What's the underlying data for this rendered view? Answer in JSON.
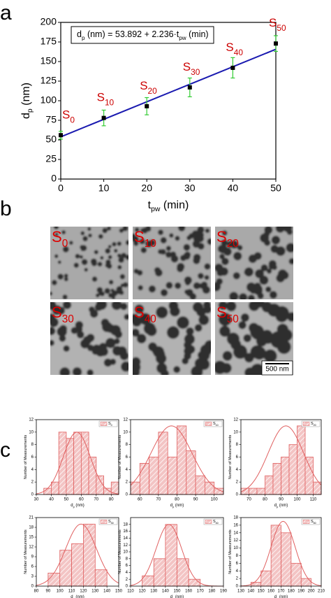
{
  "panel_labels": [
    "a",
    "b",
    "c"
  ],
  "chart_data": [
    {
      "type": "scatter",
      "x": [
        0,
        10,
        20,
        30,
        40,
        50
      ],
      "values": [
        56,
        78,
        93,
        117,
        142,
        173
      ],
      "errors": [
        5,
        10,
        11,
        12,
        13,
        10
      ],
      "point_labels": [
        [
          {
            "text": "S"
          },
          {
            "text": "0",
            "sub": true
          }
        ],
        [
          {
            "text": "S"
          },
          {
            "text": "10",
            "sub": true
          }
        ],
        [
          {
            "text": "S"
          },
          {
            "text": "20",
            "sub": true
          }
        ],
        [
          {
            "text": "S"
          },
          {
            "text": "30",
            "sub": true
          }
        ],
        [
          {
            "text": "S"
          },
          {
            "text": "40",
            "sub": true
          }
        ],
        [
          {
            "text": "S"
          },
          {
            "text": "50",
            "sub": true
          }
        ]
      ],
      "xlabel": [
        {
          "text": "t"
        },
        {
          "text": "pw",
          "sub": true
        },
        {
          "text": " (min)"
        }
      ],
      "ylabel": [
        {
          "text": "d"
        },
        {
          "text": "p",
          "sub": true
        },
        {
          "text": " (nm)"
        }
      ],
      "annotation": [
        {
          "text": "d"
        },
        {
          "text": "p",
          "sub": true
        },
        {
          "text": " (nm) = 53.892 + 2.236·t"
        },
        {
          "text": "pw",
          "sub": true
        },
        {
          "text": " (min)"
        }
      ],
      "fit": {
        "intercept": 53.892,
        "slope": 2.236,
        "color": "#1a1ab0"
      },
      "xlim": [
        0,
        50
      ],
      "xticks": [
        0,
        10,
        20,
        30,
        40,
        50
      ],
      "ylim": [
        0,
        200
      ],
      "yticks": [
        0,
        25,
        50,
        75,
        100,
        125,
        150,
        175,
        200
      ],
      "marker_color": "#000000",
      "error_color": "#33cc33",
      "label_color": "#cc0000"
    },
    {
      "type": "histogram",
      "legend": [
        {
          "text": "S"
        },
        {
          "text": "0",
          "sub": true
        }
      ],
      "bins": [
        35,
        40,
        45,
        50,
        55,
        60,
        65,
        70,
        75,
        80,
        85
      ],
      "values": [
        1,
        2,
        10,
        9,
        10,
        10,
        6,
        3,
        1,
        2
      ],
      "fit": {
        "mean": 57,
        "sd": 9,
        "amplitude": 10
      },
      "xlim": [
        30,
        85
      ],
      "xticks": [
        30,
        40,
        50,
        60,
        70,
        80
      ],
      "ylim": [
        0,
        12
      ],
      "yticks": [
        0,
        2,
        4,
        6,
        8,
        10,
        12
      ],
      "xlabel": [
        {
          "text": "d"
        },
        {
          "text": "p",
          "sub": true
        },
        {
          "text": " (nm)"
        }
      ],
      "ylabel": [
        {
          "text": "Number of Measurements"
        }
      ],
      "color": "#e06060"
    },
    {
      "type": "histogram",
      "legend": [
        {
          "text": "S"
        },
        {
          "text": "10",
          "sub": true
        }
      ],
      "bins": [
        55,
        60,
        65,
        70,
        75,
        80,
        85,
        90,
        95,
        100,
        105
      ],
      "values": [
        2,
        5,
        6,
        10,
        6,
        11,
        7,
        3,
        2,
        1
      ],
      "fit": {
        "mean": 77,
        "sd": 11,
        "amplitude": 11
      },
      "xlim": [
        55,
        105
      ],
      "xticks": [
        60,
        70,
        80,
        90,
        100
      ],
      "ylim": [
        0,
        12
      ],
      "yticks": [
        0,
        2,
        4,
        6,
        8,
        10,
        12
      ],
      "xlabel": [
        {
          "text": "d"
        },
        {
          "text": "p",
          "sub": true
        },
        {
          "text": " (nm)"
        }
      ],
      "ylabel": [
        {
          "text": "Number of Measurements"
        }
      ],
      "color": "#e06060"
    },
    {
      "type": "histogram",
      "legend": [
        {
          "text": "S"
        },
        {
          "text": "20",
          "sub": true
        }
      ],
      "bins": [
        65,
        70,
        75,
        80,
        85,
        90,
        95,
        100,
        105,
        110,
        115
      ],
      "values": [
        1,
        1,
        1,
        3,
        5,
        6,
        8,
        11,
        6,
        2
      ],
      "fit": {
        "mean": 93,
        "sd": 11,
        "amplitude": 11
      },
      "xlim": [
        65,
        115
      ],
      "xticks": [
        70,
        80,
        90,
        100,
        110
      ],
      "ylim": [
        0,
        12
      ],
      "yticks": [
        0,
        2,
        4,
        6,
        8,
        10,
        12
      ],
      "xlabel": [
        {
          "text": "d"
        },
        {
          "text": "p",
          "sub": true
        },
        {
          "text": " (nm)"
        }
      ],
      "ylabel": [
        {
          "text": "Number of Measurements"
        }
      ],
      "color": "#e06060"
    },
    {
      "type": "histogram",
      "legend": [
        {
          "text": "S"
        },
        {
          "text": "30",
          "sub": true
        }
      ],
      "bins": [
        90,
        100,
        110,
        120,
        130,
        140
      ],
      "values": [
        4,
        11,
        13,
        19,
        5
      ],
      "fit": {
        "mean": 118,
        "sd": 13,
        "amplitude": 19
      },
      "xlim": [
        80,
        150
      ],
      "xticks": [
        80,
        90,
        100,
        110,
        120,
        130,
        140,
        150
      ],
      "ylim": [
        0,
        21
      ],
      "yticks": [
        0,
        3,
        6,
        9,
        12,
        15,
        18,
        21
      ],
      "xlabel": [
        {
          "text": "d"
        },
        {
          "text": "p",
          "sub": true
        },
        {
          "text": " (nm)"
        }
      ],
      "ylabel": [
        {
          "text": "Number of Measurements"
        }
      ],
      "color": "#e06060"
    },
    {
      "type": "histogram",
      "legend": [
        {
          "text": "S"
        },
        {
          "text": "40",
          "sub": true
        }
      ],
      "bins": [
        120,
        130,
        140,
        150,
        160,
        170
      ],
      "values": [
        3,
        8,
        18,
        8,
        2
      ],
      "fit": {
        "mean": 143,
        "sd": 11,
        "amplitude": 18
      },
      "xlim": [
        110,
        190
      ],
      "xticks": [
        110,
        120,
        130,
        140,
        150,
        160,
        170,
        180,
        190
      ],
      "ylim": [
        0,
        20
      ],
      "yticks": [
        0,
        2,
        4,
        6,
        8,
        10,
        12,
        14,
        16,
        18
      ],
      "xlabel": [
        {
          "text": "d"
        },
        {
          "text": "p",
          "sub": true
        },
        {
          "text": " (nm)"
        }
      ],
      "ylabel": [
        {
          "text": "Number of Measurements"
        }
      ],
      "color": "#e06060"
    },
    {
      "type": "histogram",
      "legend": [
        {
          "text": "S"
        },
        {
          "text": "50",
          "sub": true
        }
      ],
      "bins": [
        140,
        150,
        160,
        170,
        180,
        190,
        200
      ],
      "values": [
        1,
        4,
        16,
        14,
        6,
        2
      ],
      "fit": {
        "mean": 172,
        "sd": 12,
        "amplitude": 17
      },
      "xlim": [
        130,
        210
      ],
      "xticks": [
        130,
        140,
        150,
        160,
        170,
        180,
        190,
        200,
        210
      ],
      "ylim": [
        0,
        18
      ],
      "yticks": [
        0,
        2,
        4,
        6,
        8,
        10,
        12,
        14,
        16,
        18
      ],
      "xlabel": [
        {
          "text": "d"
        },
        {
          "text": "p",
          "sub": true
        },
        {
          "text": " (nm)"
        }
      ],
      "ylabel": [
        {
          "text": "Number of Measurements"
        }
      ],
      "color": "#e06060"
    }
  ],
  "micrographs": {
    "tiles": [
      [
        {
          "text": "S"
        },
        {
          "text": "0",
          "sub": true
        }
      ],
      [
        {
          "text": "S"
        },
        {
          "text": "10",
          "sub": true
        }
      ],
      [
        {
          "text": "S"
        },
        {
          "text": "20",
          "sub": true
        }
      ],
      [
        {
          "text": "S"
        },
        {
          "text": "30",
          "sub": true
        }
      ],
      [
        {
          "text": "S"
        },
        {
          "text": "40",
          "sub": true
        }
      ],
      [
        {
          "text": "S"
        },
        {
          "text": "50",
          "sub": true
        }
      ]
    ],
    "scale_bar": "500 nm"
  }
}
